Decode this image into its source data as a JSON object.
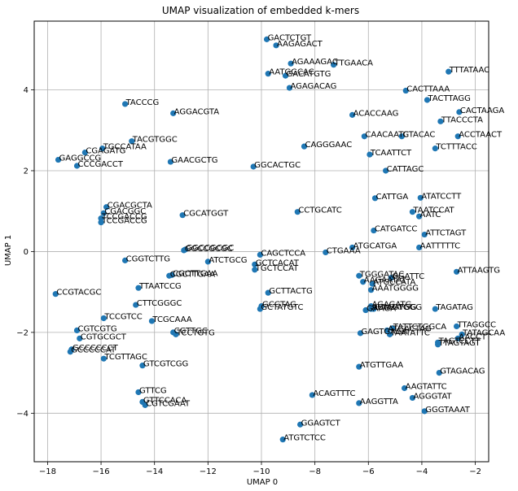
{
  "chart_data": {
    "type": "scatter",
    "title": "UMAP visualization of embedded k-mers",
    "xlabel": "UMAP 0",
    "ylabel": "UMAP 1",
    "xlim": [
      -18.5,
      -1.5
    ],
    "ylim": [
      -5.2,
      5.7
    ],
    "xticks": [
      -18,
      -16,
      -14,
      -12,
      -10,
      -8,
      -6,
      -4,
      -2
    ],
    "yticks": [
      -4,
      -2,
      0,
      2,
      4
    ],
    "grid": true,
    "color": "#1f77b4",
    "points": [
      {
        "x": -9.8,
        "y": 5.25,
        "label": "GACTCTGT"
      },
      {
        "x": -9.45,
        "y": 5.1,
        "label": "AAGAGACT"
      },
      {
        "x": -8.9,
        "y": 4.65,
        "label": "AGAAAGAC"
      },
      {
        "x": -7.3,
        "y": 4.62,
        "label": "TTGAACA"
      },
      {
        "x": -9.75,
        "y": 4.4,
        "label": "AATGGCAC"
      },
      {
        "x": -9.1,
        "y": 4.35,
        "label": "GACATGTG"
      },
      {
        "x": -8.95,
        "y": 4.05,
        "label": "AGAGACAG"
      },
      {
        "x": -3.0,
        "y": 4.45,
        "label": "TTTATAAC"
      },
      {
        "x": -4.6,
        "y": 3.98,
        "label": "CACTTAAA"
      },
      {
        "x": -3.8,
        "y": 3.75,
        "label": "TACTTAGG"
      },
      {
        "x": -2.6,
        "y": 3.45,
        "label": "CACTAAGA"
      },
      {
        "x": -3.3,
        "y": 3.22,
        "label": "TTACCCTA"
      },
      {
        "x": -2.65,
        "y": 2.85,
        "label": "ACCTAACT"
      },
      {
        "x": -3.5,
        "y": 2.55,
        "label": "TCTTTACC"
      },
      {
        "x": -15.1,
        "y": 3.65,
        "label": "TACCCG"
      },
      {
        "x": -13.3,
        "y": 3.42,
        "label": "AGGACGTA"
      },
      {
        "x": -6.6,
        "y": 3.38,
        "label": "ACACCAAG"
      },
      {
        "x": -6.15,
        "y": 2.85,
        "label": "CAACAATC"
      },
      {
        "x": -4.75,
        "y": 2.85,
        "label": "GTACAC"
      },
      {
        "x": -8.4,
        "y": 2.6,
        "label": "CAGGGAAC"
      },
      {
        "x": -14.85,
        "y": 2.73,
        "label": "TACGTGGC"
      },
      {
        "x": -15.95,
        "y": 2.55,
        "label": "TGCCATAA"
      },
      {
        "x": -16.6,
        "y": 2.45,
        "label": "CGAGATG"
      },
      {
        "x": -17.6,
        "y": 2.27,
        "label": "GAGGCCG"
      },
      {
        "x": -16.9,
        "y": 2.12,
        "label": "CCCGACCT"
      },
      {
        "x": -13.4,
        "y": 2.22,
        "label": "GAACGCTG"
      },
      {
        "x": -10.3,
        "y": 2.1,
        "label": "GGCACTGC"
      },
      {
        "x": -5.95,
        "y": 2.4,
        "label": "TCAATTCT"
      },
      {
        "x": -5.35,
        "y": 2.0,
        "label": "CATTAGC"
      },
      {
        "x": -15.8,
        "y": 1.1,
        "label": "CGACGCTA"
      },
      {
        "x": -15.9,
        "y": 0.95,
        "label": "CGACGGC"
      },
      {
        "x": -16.0,
        "y": 0.82,
        "label": "TCCGACCG"
      },
      {
        "x": -16.0,
        "y": 0.72,
        "label": "TCCGACCG"
      },
      {
        "x": -12.95,
        "y": 0.9,
        "label": "CGCATGGT"
      },
      {
        "x": -8.65,
        "y": 0.98,
        "label": "CCTGCATC"
      },
      {
        "x": -5.75,
        "y": 1.32,
        "label": "CATTGA"
      },
      {
        "x": -4.05,
        "y": 1.33,
        "label": "ATATCCTT"
      },
      {
        "x": -4.35,
        "y": 0.98,
        "label": "TAATCCAT"
      },
      {
        "x": -4.1,
        "y": 0.87,
        "label": "AATC"
      },
      {
        "x": -3.9,
        "y": 0.42,
        "label": "ATTCTAGT"
      },
      {
        "x": -5.8,
        "y": 0.52,
        "label": "CATGATCC"
      },
      {
        "x": -15.1,
        "y": -0.22,
        "label": "CGGTCTTG"
      },
      {
        "x": -12.85,
        "y": 0.05,
        "label": "GGCCGCGC"
      },
      {
        "x": -12.9,
        "y": 0.03,
        "label": "GGCCGCGC"
      },
      {
        "x": -12.0,
        "y": -0.25,
        "label": "ATCTGCG"
      },
      {
        "x": -10.05,
        "y": -0.08,
        "label": "CAGCTCCA"
      },
      {
        "x": -10.25,
        "y": -0.32,
        "label": "GCTCACAT"
      },
      {
        "x": -10.25,
        "y": -0.45,
        "label": "TGCTCCAT"
      },
      {
        "x": -13.35,
        "y": -0.58,
        "label": "CGCTTGAA"
      },
      {
        "x": -13.45,
        "y": -0.6,
        "label": "CGCTTGAA"
      },
      {
        "x": -7.6,
        "y": -0.02,
        "label": "CTGAAA"
      },
      {
        "x": -6.6,
        "y": 0.1,
        "label": "ATGCATGA"
      },
      {
        "x": -4.1,
        "y": 0.1,
        "label": "AATTTTTC"
      },
      {
        "x": -2.7,
        "y": -0.5,
        "label": "ATTAAGTG"
      },
      {
        "x": -17.7,
        "y": -1.05,
        "label": "CCGTACGC"
      },
      {
        "x": -14.6,
        "y": -0.9,
        "label": "TTAATCCG"
      },
      {
        "x": -9.75,
        "y": -1.02,
        "label": "GCTTACTG"
      },
      {
        "x": -6.35,
        "y": -0.6,
        "label": "TGGGATAC"
      },
      {
        "x": -5.15,
        "y": -0.65,
        "label": "GGATTC"
      },
      {
        "x": -6.2,
        "y": -0.75,
        "label": "AAGAATAT"
      },
      {
        "x": -5.85,
        "y": -0.8,
        "label": "ATGCCATA"
      },
      {
        "x": -5.9,
        "y": -0.95,
        "label": "AAATGGGG"
      },
      {
        "x": -14.7,
        "y": -1.32,
        "label": "CTTCGGGC"
      },
      {
        "x": -10.0,
        "y": -1.35,
        "label": "GCGTAG"
      },
      {
        "x": -10.05,
        "y": -1.42,
        "label": "GCTATGTC"
      },
      {
        "x": -6.1,
        "y": -1.45,
        "label": "GAAGA"
      },
      {
        "x": -5.9,
        "y": -1.35,
        "label": "AGAGATG"
      },
      {
        "x": -5.8,
        "y": -1.42,
        "label": "GAAGTGGG"
      },
      {
        "x": -5.9,
        "y": -1.42,
        "label": "ACACATGG"
      },
      {
        "x": -3.5,
        "y": -1.42,
        "label": "TAGATAG"
      },
      {
        "x": -15.9,
        "y": -1.65,
        "label": "TCCGTCC"
      },
      {
        "x": -14.1,
        "y": -1.72,
        "label": "TCGCAAA"
      },
      {
        "x": -16.9,
        "y": -1.95,
        "label": "CGTCGTG"
      },
      {
        "x": -16.8,
        "y": -2.15,
        "label": "CGTGCGCT"
      },
      {
        "x": -13.3,
        "y": -2.0,
        "label": "CGTTGC"
      },
      {
        "x": -13.2,
        "y": -2.05,
        "label": "TCCTGTG"
      },
      {
        "x": -6.3,
        "y": -2.02,
        "label": "GAGTGAGA"
      },
      {
        "x": -5.3,
        "y": -1.95,
        "label": "ATGACTAG"
      },
      {
        "x": -5.1,
        "y": -1.9,
        "label": "TATTCTGGCA"
      },
      {
        "x": -5.2,
        "y": -2.05,
        "label": "TAATATTC"
      },
      {
        "x": -2.7,
        "y": -1.85,
        "label": "TTAGGCC"
      },
      {
        "x": -2.5,
        "y": -2.05,
        "label": "TATAGCAA"
      },
      {
        "x": -2.65,
        "y": -2.15,
        "label": "AACCTT"
      },
      {
        "x": -3.4,
        "y": -2.25,
        "label": "TAGTCCTT"
      },
      {
        "x": -3.4,
        "y": -2.3,
        "label": "TTAGTAGT"
      },
      {
        "x": -17.1,
        "y": -2.42,
        "label": "GCCCCCCT"
      },
      {
        "x": -17.15,
        "y": -2.48,
        "label": "GCCCCCAT"
      },
      {
        "x": -15.9,
        "y": -2.65,
        "label": "TCGTTAGC"
      },
      {
        "x": -14.45,
        "y": -2.82,
        "label": "GTCGTCGG"
      },
      {
        "x": -6.35,
        "y": -2.85,
        "label": "ATGTTGAA"
      },
      {
        "x": -3.35,
        "y": -3.0,
        "label": "GTAGACAG"
      },
      {
        "x": -14.6,
        "y": -3.48,
        "label": "GTTCG"
      },
      {
        "x": -14.45,
        "y": -3.72,
        "label": "GTTCCACA"
      },
      {
        "x": -14.35,
        "y": -3.8,
        "label": "CGTCGAAT"
      },
      {
        "x": -8.1,
        "y": -3.55,
        "label": "ACAGTTTC"
      },
      {
        "x": -4.65,
        "y": -3.38,
        "label": "AAGTATTC"
      },
      {
        "x": -4.35,
        "y": -3.62,
        "label": "AGGGTAT"
      },
      {
        "x": -6.35,
        "y": -3.75,
        "label": "AAGGTTA"
      },
      {
        "x": -3.9,
        "y": -3.95,
        "label": "GGGTAAAT"
      },
      {
        "x": -8.55,
        "y": -4.28,
        "label": "GGAGTCT"
      },
      {
        "x": -9.2,
        "y": -4.65,
        "label": "ATGTCTCC"
      }
    ]
  }
}
